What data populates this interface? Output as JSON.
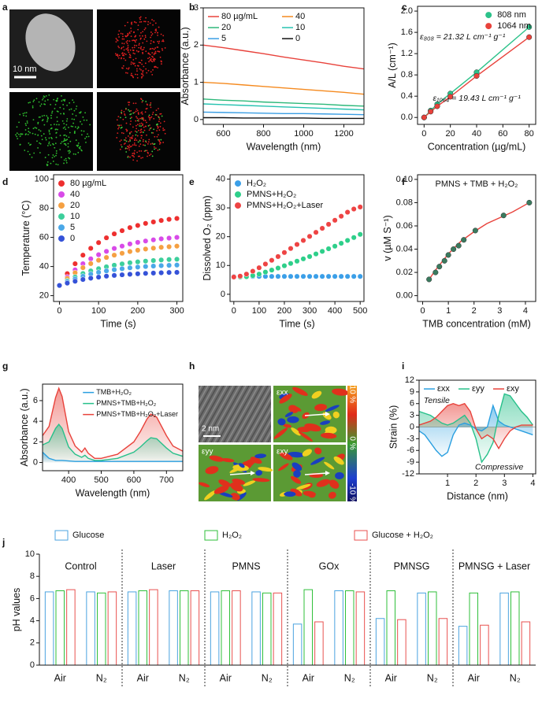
{
  "images": [
    {
      "label": "a",
      "scale_bar": "10 nm"
    },
    {
      "label": "h",
      "scale_bar": "2 nm",
      "tiles": [
        "εxx",
        "εyy",
        "εxy"
      ],
      "colorbar": [
        "+10 %",
        "0 %",
        "-10 %"
      ]
    }
  ],
  "chart_data": [
    {
      "label": "b",
      "type": "line",
      "x": [
        500,
        600,
        700,
        800,
        900,
        1000,
        1100,
        1200,
        1300
      ],
      "xlim": [
        500,
        1300
      ],
      "xticks": [
        600,
        800,
        1000,
        1200
      ],
      "ylim": [
        -0.13,
        3
      ],
      "yticks": [
        0,
        1,
        2,
        3
      ],
      "xlabel": "Wavelength (nm)",
      "ylabel": "Absorbance (a.u.)",
      "legend": "upper left",
      "legend_columns": 2,
      "series": [
        {
          "name": "80 µg/mL",
          "color": "#e8423b",
          "values": [
            2.0,
            1.93,
            1.85,
            1.77,
            1.68,
            1.6,
            1.52,
            1.43,
            1.36
          ]
        },
        {
          "name": "40",
          "color": "#f58a1f",
          "values": [
            1.0,
            0.97,
            0.93,
            0.89,
            0.85,
            0.81,
            0.77,
            0.73,
            0.68
          ]
        },
        {
          "name": "20",
          "color": "#2db87a",
          "values": [
            0.55,
            0.52,
            0.5,
            0.47,
            0.45,
            0.43,
            0.41,
            0.38,
            0.36
          ]
        },
        {
          "name": "10",
          "color": "#26c2b0",
          "values": [
            0.42,
            0.4,
            0.38,
            0.36,
            0.34,
            0.32,
            0.3,
            0.28,
            0.26
          ]
        },
        {
          "name": "5",
          "color": "#3a9ee4",
          "values": [
            0.2,
            0.19,
            0.18,
            0.17,
            0.16,
            0.16,
            0.15,
            0.14,
            0.13
          ]
        },
        {
          "name": "0",
          "color": "#111111",
          "values": [
            0.05,
            0.05,
            0.04,
            0.04,
            0.04,
            0.04,
            0.03,
            0.03,
            0.03
          ]
        }
      ]
    },
    {
      "label": "c",
      "type": "scatter",
      "x": [
        0,
        5,
        10,
        20,
        40,
        80
      ],
      "xlim": [
        -5,
        85
      ],
      "xticks": [
        0,
        20,
        40,
        60,
        80
      ],
      "ylim": [
        -0.13,
        2.09
      ],
      "yticks": [
        {
          "value": 0,
          "label": "0.0"
        },
        {
          "value": 0.4,
          "label": "0.4"
        },
        {
          "value": 0.8,
          "label": "0.8"
        },
        {
          "value": 1.2,
          "label": "1.2"
        },
        {
          "value": 1.6,
          "label": "1.6"
        },
        {
          "value": 2,
          "label": "2.0"
        }
      ],
      "xlabel": "Concentration (µg/mL)",
      "ylabel": "A/L (cm⁻¹)",
      "legend": "upper right",
      "annotations": [
        "ε₈₀₈ = 21.32 L cm⁻¹ g⁻¹",
        "ε₁₀₆₄ = 19.43 L cm⁻¹ g⁻¹"
      ],
      "series": [
        {
          "name": "808 nm",
          "color": "#2cc28a",
          "mode": "lines+markers",
          "values": [
            0,
            0.13,
            0.25,
            0.45,
            0.85,
            1.7
          ]
        },
        {
          "name": "1064 nm",
          "color": "#e8423b",
          "mode": "lines+markers",
          "values": [
            0,
            0.11,
            0.21,
            0.39,
            0.78,
            1.51
          ]
        }
      ]
    },
    {
      "label": "d",
      "type": "scatter",
      "x": [
        0,
        20,
        40,
        60,
        80,
        100,
        120,
        140,
        160,
        180,
        200,
        220,
        240,
        260,
        280,
        300
      ],
      "xlim": [
        -15,
        315
      ],
      "xticks": [
        0,
        100,
        200,
        300
      ],
      "ylim": [
        16,
        103
      ],
      "yticks": [
        20,
        40,
        60,
        80,
        100
      ],
      "xlabel": "Time (s)",
      "ylabel": "Temperature (°C)",
      "legend": "upper left",
      "series": [
        {
          "name": "80 µg/mL",
          "color": "#ee2f2f",
          "values": [
            27,
            35.1,
            41.9,
            47.8,
            52.5,
            56.4,
            59.7,
            62.4,
            64.6,
            66.7,
            68.2,
            69.6,
            70.6,
            71.6,
            72.4,
            73.0
          ]
        },
        {
          "name": "40",
          "color": "#d84ae8",
          "values": [
            27,
            32.8,
            37.7,
            41.9,
            45.3,
            48.1,
            50.4,
            52.4,
            54.0,
            55.5,
            56.6,
            57.5,
            58.3,
            59.0,
            59.5,
            60.0
          ]
        },
        {
          "name": "20",
          "color": "#f5a042",
          "values": [
            27,
            31.8,
            35.7,
            39.2,
            42.0,
            44.3,
            46.2,
            47.8,
            49.1,
            50.3,
            51.2,
            52.0,
            52.6,
            53.2,
            53.6,
            54.0
          ]
        },
        {
          "name": "10",
          "color": "#3ccf9c",
          "values": [
            27,
            30.2,
            32.8,
            35.2,
            37.0,
            38.5,
            39.8,
            40.9,
            41.8,
            42.6,
            43.2,
            43.7,
            44.1,
            44.5,
            44.8,
            45.0
          ]
        },
        {
          "name": "5",
          "color": "#4aa8e8",
          "values": [
            27,
            29.5,
            31.5,
            33.3,
            34.8,
            36.0,
            37.0,
            37.8,
            38.5,
            39.1,
            39.6,
            40.0,
            40.3,
            40.6,
            40.8,
            41.0
          ]
        },
        {
          "name": "0",
          "color": "#3552d8",
          "values": [
            27,
            28.6,
            29.9,
            31.1,
            32.0,
            32.7,
            33.4,
            33.9,
            34.3,
            34.7,
            35.0,
            35.3,
            35.5,
            35.7,
            35.9,
            36.0
          ]
        }
      ]
    },
    {
      "label": "e",
      "type": "scatter",
      "x": [
        0,
        25,
        50,
        75,
        100,
        125,
        150,
        175,
        200,
        225,
        250,
        275,
        300,
        325,
        350,
        375,
        400,
        425,
        450,
        475,
        500
      ],
      "xlim": [
        -15,
        515
      ],
      "xticks": [
        0,
        100,
        200,
        300,
        400,
        500
      ],
      "ylim": [
        -2.5,
        41.5
      ],
      "yticks": [
        0,
        10,
        20,
        30,
        40
      ],
      "xlabel": "Time (s)",
      "ylabel": "Dissolved O₂ (ppm)",
      "legend": "upper left",
      "series": [
        {
          "name": "H₂O₂",
          "color": "#3b9fe8",
          "values": [
            6.2,
            6.2,
            6.2,
            6.2,
            6.2,
            6.2,
            6.2,
            6.2,
            6.2,
            6.2,
            6.2,
            6.2,
            6.2,
            6.2,
            6.2,
            6.2,
            6.2,
            6.2,
            6.2,
            6.2,
            6.2
          ]
        },
        {
          "name": "PMNS+H₂O₂",
          "color": "#2ecf8a",
          "values": [
            6.0,
            6.0,
            6.1,
            6.5,
            7.0,
            7.7,
            8.4,
            9.1,
            9.9,
            10.7,
            11.5,
            12.3,
            13.1,
            14.0,
            14.9,
            15.8,
            16.7,
            17.7,
            18.7,
            19.7,
            20.8
          ]
        },
        {
          "name": "PMNS+H₂O₂+Laser",
          "color": "#ee4444",
          "values": [
            6.0,
            6.3,
            7.0,
            8.0,
            9.2,
            10.5,
            11.8,
            13.1,
            14.5,
            15.9,
            17.3,
            18.7,
            20.1,
            21.5,
            22.9,
            24.3,
            25.7,
            27.1,
            28.5,
            29.6,
            30.3
          ]
        }
      ]
    },
    {
      "label": "f",
      "type": "scatter",
      "xlim": [
        -0.2,
        4.4
      ],
      "xticks": [
        0,
        1,
        2,
        3,
        4
      ],
      "ylim": [
        -0.005,
        0.104
      ],
      "yticks": [
        {
          "value": 0,
          "label": "0.00"
        },
        {
          "value": 0.02,
          "label": "0.02"
        },
        {
          "value": 0.04,
          "label": "0.04"
        },
        {
          "value": 0.06,
          "label": "0.06"
        },
        {
          "value": 0.08,
          "label": "0.08"
        },
        {
          "value": 0.1,
          "label": "0.10"
        }
      ],
      "xlabel": "TMB concentration (mM)",
      "ylabel": "v (µM S⁻¹)",
      "title": "PMNS + TMB + H₂O₂",
      "series": [
        {
          "color": "#e8423b",
          "mode": "lines",
          "x": [
            0.25,
            0.5,
            1,
            1.5,
            2,
            2.5,
            3,
            3.5,
            4.15
          ],
          "values": [
            0.014,
            0.022,
            0.036,
            0.047,
            0.055,
            0.062,
            0.067,
            0.072,
            0.08
          ]
        },
        {
          "color": "#3a7a5e",
          "mode": "markers",
          "x": [
            0.25,
            0.5,
            0.65,
            0.85,
            1.0,
            1.2,
            1.4,
            1.6,
            2.05,
            3.15,
            4.15
          ],
          "values": [
            0.014,
            0.02,
            0.025,
            0.03,
            0.035,
            0.04,
            0.043,
            0.048,
            0.056,
            0.069,
            0.08
          ]
        }
      ]
    },
    {
      "label": "g",
      "type": "area",
      "x": [
        320,
        340,
        360,
        370,
        380,
        400,
        420,
        440,
        450,
        460,
        480,
        500,
        550,
        600,
        620,
        640,
        652,
        670,
        700,
        720,
        750
      ],
      "xlim": [
        320,
        750
      ],
      "xticks": [
        400,
        500,
        600,
        700
      ],
      "ylim": [
        -0.8,
        7.6
      ],
      "yticks": [
        0,
        2,
        4,
        6
      ],
      "xlabel": "Wavelength (nm)",
      "ylabel": "Absorbance (a.u.)",
      "legend": "upper right",
      "series": [
        {
          "name": "TMB+H₂O₂",
          "color": "#2a9fe0",
          "values": [
            1.0,
            0.4,
            0.2,
            0.2,
            0.2,
            0.15,
            0.1,
            0.1,
            0.1,
            0.1,
            0.1,
            0.1,
            0.1,
            0.1,
            0.1,
            0.1,
            0.1,
            0.1,
            0.1,
            0.1,
            0.1
          ]
        },
        {
          "name": "PMNS+TMB+H₂O₂",
          "color": "#27c08a",
          "values": [
            1.7,
            2.0,
            3.3,
            3.7,
            3.3,
            1.5,
            0.8,
            0.5,
            0.7,
            0.4,
            0.2,
            0.2,
            0.4,
            1.0,
            1.5,
            2.1,
            2.4,
            2.3,
            1.4,
            0.9,
            0.6
          ]
        },
        {
          "name": "PMNS+TMB+H₂O₂+Laser",
          "color": "#e8423b",
          "values": [
            2.6,
            3.5,
            6.3,
            7.2,
            6.4,
            3.0,
            1.6,
            1.0,
            1.4,
            0.9,
            0.4,
            0.4,
            0.8,
            2.0,
            3.0,
            4.2,
            4.7,
            4.4,
            2.6,
            1.6,
            1.1
          ]
        }
      ]
    },
    {
      "label": "i",
      "type": "area",
      "x": [
        0,
        0.2,
        0.4,
        0.6,
        0.8,
        1.0,
        1.2,
        1.4,
        1.6,
        1.8,
        2.0,
        2.2,
        2.4,
        2.6,
        2.8,
        3.0,
        3.2,
        3.4,
        3.6,
        3.8,
        4.0
      ],
      "xlim": [
        0,
        4.1
      ],
      "xticks": [
        1,
        2,
        3,
        4
      ],
      "ylim": [
        -12,
        12
      ],
      "yticks": [
        -12,
        -9,
        -6,
        -3,
        0,
        3,
        6,
        9,
        12
      ],
      "xlabel": "Distance (nm)",
      "ylabel": "Strain (%)",
      "legend": "upper left",
      "legend_columns": 3,
      "zero_line": true,
      "annotations": [
        "Tensile",
        "Compressive"
      ],
      "series": [
        {
          "name": "εxx",
          "color": "#2a9fe0",
          "values": [
            -1,
            -2,
            -4,
            -6,
            -7.5,
            -6.5,
            -2,
            0.5,
            1,
            0.5,
            -0.5,
            -1,
            0,
            5.5,
            1.5,
            0.5,
            0,
            -0.5,
            -1,
            -1.5,
            -2
          ]
        },
        {
          "name": "εyy",
          "color": "#27c08a",
          "values": [
            4,
            3.5,
            3,
            2,
            1,
            0.5,
            1,
            2,
            3,
            1,
            -3,
            -9,
            -7,
            -4,
            3,
            8.5,
            8,
            6,
            4,
            2.5,
            0.5
          ]
        },
        {
          "name": "εxy",
          "color": "#e8423b",
          "values": [
            0.5,
            1,
            1.5,
            2.5,
            4,
            5.5,
            6,
            5.5,
            6,
            4,
            -0.5,
            -3,
            -2,
            -3,
            -5.5,
            -3,
            -1,
            0,
            0.5,
            0.5,
            0.5
          ]
        }
      ]
    },
    {
      "label": "j",
      "type": "bar",
      "groups": [
        "Control",
        "Laser",
        "PMNS",
        "GOx",
        "PMNSG",
        "PMNSG + Laser"
      ],
      "categories": [
        "Air",
        "N₂",
        "Air",
        "N₂",
        "Air",
        "N₂",
        "Air",
        "N₂",
        "Air",
        "N₂",
        "Air",
        "N₂"
      ],
      "ylim": [
        0,
        10
      ],
      "yticks": [
        0,
        2,
        4,
        6,
        8,
        10
      ],
      "ylabel": "pH values",
      "legend": "above",
      "legend_columns": 3,
      "series": [
        {
          "name": "Glucose",
          "color": "#4aa3e0",
          "values": [
            6.6,
            6.6,
            6.6,
            6.7,
            6.6,
            6.6,
            3.7,
            6.7,
            4.2,
            6.5,
            3.5,
            6.5
          ]
        },
        {
          "name": "H₂O₂",
          "color": "#2fbf3a",
          "values": [
            6.7,
            6.5,
            6.7,
            6.7,
            6.7,
            6.5,
            6.8,
            6.7,
            6.7,
            6.6,
            6.5,
            6.6
          ]
        },
        {
          "name": "Glucose + H₂O₂",
          "color": "#e8504f",
          "values": [
            6.8,
            6.6,
            6.8,
            6.7,
            6.7,
            6.5,
            3.9,
            6.6,
            4.1,
            4.2,
            3.6,
            3.9
          ]
        }
      ]
    }
  ]
}
